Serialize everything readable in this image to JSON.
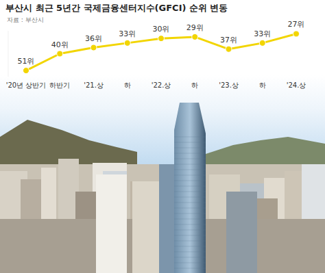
{
  "chart_data": {
    "type": "line",
    "title": "부산시 최근 5년간 국제금융센터지수(GFCI) 순위 변동",
    "source": "자료 : 부산시",
    "categories": [
      "'20년 상반기",
      "하반기",
      "'21.상",
      "하",
      "'22.상",
      "하",
      "'23.상",
      "하",
      "'24.상"
    ],
    "values": [
      51,
      40,
      36,
      33,
      30,
      29,
      37,
      33,
      27
    ],
    "value_labels": [
      "51위",
      "40위",
      "36위",
      "33위",
      "30위",
      "29위",
      "37위",
      "33위",
      "27위"
    ],
    "color": "#f2d500",
    "marker": "circle",
    "ylim": [
      55,
      25
    ],
    "data_labels": true,
    "tick_labels": "x",
    "grid": false
  }
}
